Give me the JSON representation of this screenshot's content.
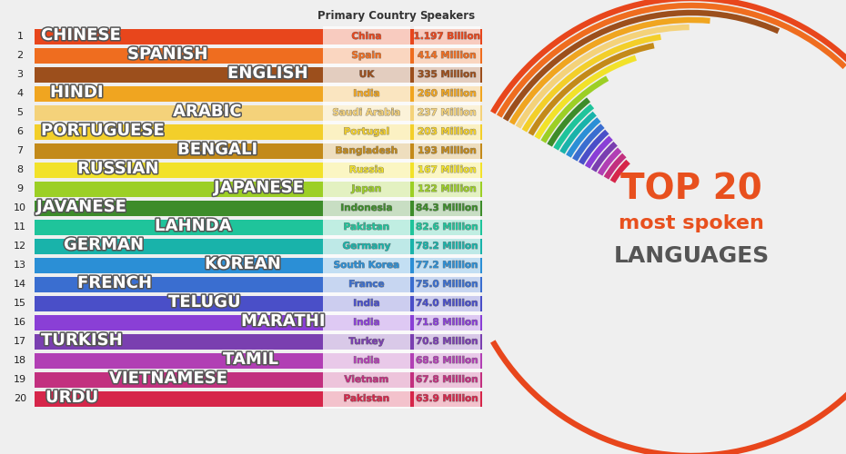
{
  "chart_data": {
    "type": "bar",
    "orientation": "horizontal",
    "title": "TOP 20 most spoken LANGUAGES",
    "columns": [
      "Primary Country",
      "Speakers"
    ],
    "ranks": [
      1,
      2,
      3,
      4,
      5,
      6,
      7,
      8,
      9,
      10,
      11,
      12,
      13,
      14,
      15,
      16,
      17,
      18,
      19,
      20
    ],
    "categories": [
      "CHINESE",
      "SPANISH",
      "ENGLISH",
      "HINDI",
      "ARABIC",
      "PORTUGUESE",
      "BENGALI",
      "RUSSIAN",
      "JAPANESE",
      "JAVANESE",
      "LAHNDA",
      "GERMAN",
      "KOREAN",
      "FRENCH",
      "TELUGU",
      "MARATHI",
      "TURKISH",
      "TAMIL",
      "VIETNAMESE",
      "URDU"
    ],
    "countries": [
      "China",
      "Spain",
      "UK",
      "India",
      "Saudi Arabia",
      "Portugal",
      "Bangladesh",
      "Russia",
      "Japan",
      "Indonesia",
      "Pakistan",
      "Germany",
      "South Korea",
      "France",
      "India",
      "India",
      "Turkey",
      "India",
      "Vietnam",
      "Pakistan"
    ],
    "values": [
      1197,
      414,
      335,
      260,
      237,
      203,
      193,
      167,
      122,
      84.3,
      82.6,
      78.2,
      77.2,
      75.0,
      74.0,
      71.8,
      70.8,
      68.8,
      67.8,
      63.9
    ],
    "value_labels": [
      "1.197 Billion",
      "414 Million",
      "335 Million",
      "260 Million",
      "237 Million",
      "203 Million",
      "193 Million",
      "167 Million",
      "122 Million",
      "84.3 Million",
      "82.6 Million",
      "78.2 Million",
      "77.2 Million",
      "75.0 Million",
      "74.0 Million",
      "71.8 Million",
      "70.8 Million",
      "68.8 Million",
      "67.8 Million",
      "63.9 Million"
    ],
    "colors": [
      "#e8461c",
      "#ef6d1f",
      "#9c4f1c",
      "#f0a520",
      "#f4d27a",
      "#f3cf2a",
      "#c38a1a",
      "#f2e22a",
      "#9ccf25",
      "#3d8c2a",
      "#1fc49b",
      "#19b3aa",
      "#2b8fd6",
      "#3a6ed0",
      "#4a4fc8",
      "#8a3fd6",
      "#7a3fb0",
      "#b13fb4",
      "#c2307f",
      "#d6264a"
    ],
    "data_labels": true
  }
}
